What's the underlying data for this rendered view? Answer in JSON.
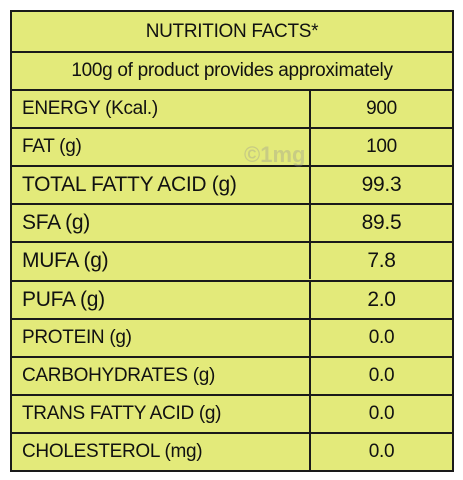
{
  "title": "NUTRITION FACTS*",
  "subtitle": "100g of product provides approximately",
  "watermark": "©1mg",
  "table": {
    "rows": [
      [
        "ENERGY (Kcal.)",
        "900"
      ],
      [
        "FAT (g)",
        "100"
      ],
      [
        "TOTAL FATTY ACID (g)",
        "99.3"
      ],
      [
        "SFA (g)",
        "89.5"
      ],
      [
        "MUFA (g)",
        "7.8"
      ],
      [
        "PUFA (g)",
        "2.0"
      ],
      [
        "PROTEIN (g)",
        "0.0"
      ],
      [
        "CARBOHYDRATES (g)",
        "0.0"
      ],
      [
        "TRANS FATTY ACID (g)",
        "0.0"
      ],
      [
        "CHOLESTEROL (mg)",
        "0.0"
      ]
    ]
  }
}
